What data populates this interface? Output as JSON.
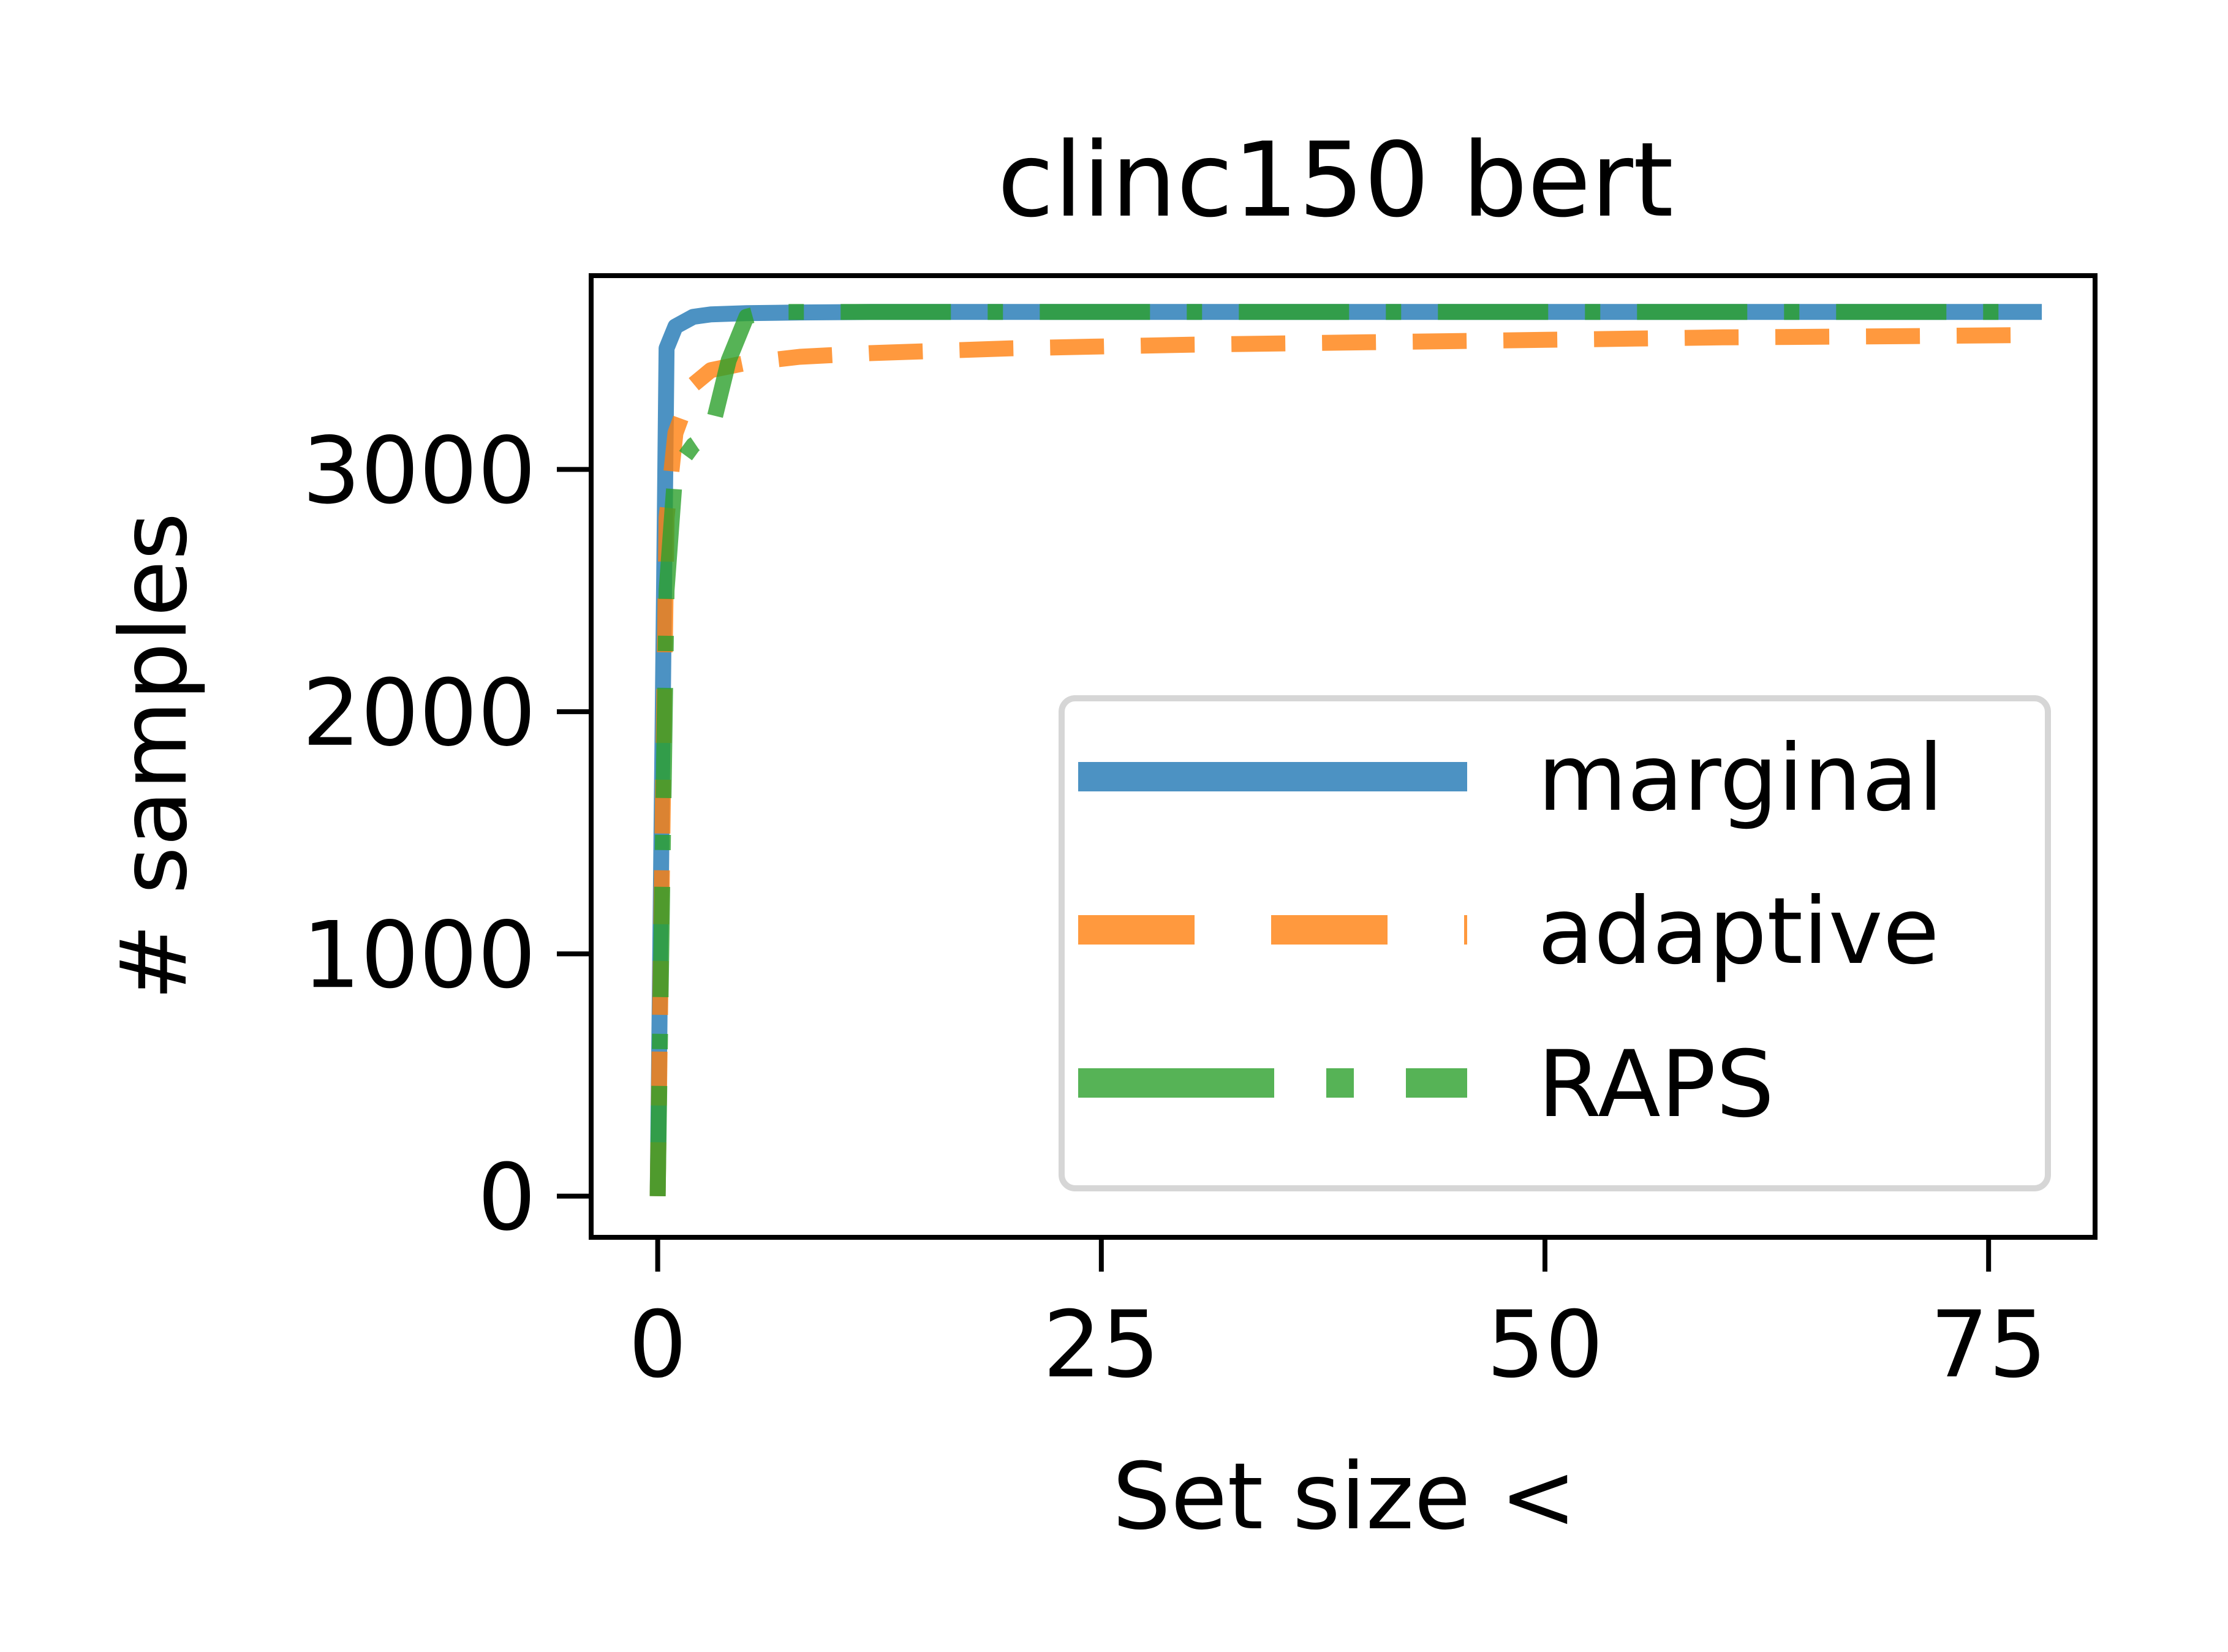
{
  "chart_data": {
    "type": "line",
    "title": "clinc150 bert",
    "xlabel": "Set size <",
    "ylabel": "# samples",
    "xlim": [
      -3.75,
      81
    ],
    "ylim": [
      -170,
      3800
    ],
    "xticks": [
      0,
      25,
      50,
      75
    ],
    "yticks": [
      0,
      1000,
      2000,
      3000
    ],
    "xtick_labels": [
      "0",
      "25",
      "50",
      "75"
    ],
    "ytick_labels": [
      "0",
      "1000",
      "2000",
      "3000"
    ],
    "grid": false,
    "legend_position": "lower-right",
    "series": [
      {
        "name": "marginal",
        "style": "solid",
        "color": "#1f77b4",
        "x": [
          0,
          0.5,
          1,
          2,
          3,
          5,
          8,
          12,
          20,
          30,
          40,
          50,
          60,
          70,
          78
        ],
        "y": [
          0,
          3500,
          3590,
          3630,
          3640,
          3645,
          3648,
          3650,
          3650,
          3650,
          3650,
          3650,
          3650,
          3650,
          3650
        ]
      },
      {
        "name": "adaptive",
        "style": "dashed",
        "color": "#ff7f0e",
        "x": [
          0,
          0.5,
          1,
          2,
          3,
          5,
          8,
          12,
          20,
          30,
          40,
          50,
          60,
          70,
          77.5
        ],
        "y": [
          0,
          2800,
          3150,
          3350,
          3410,
          3440,
          3465,
          3480,
          3500,
          3515,
          3525,
          3535,
          3545,
          3550,
          3555
        ]
      },
      {
        "name": "RAPS",
        "style": "dashdot",
        "color": "#2ca02c",
        "x": [
          0,
          0.5,
          1,
          2,
          3,
          4,
          5,
          6,
          10,
          20,
          30,
          40,
          50,
          60,
          70,
          76
        ],
        "y": [
          0,
          2500,
          3000,
          3100,
          3150,
          3450,
          3630,
          3650,
          3650,
          3650,
          3650,
          3650,
          3650,
          3650,
          3650,
          3650
        ]
      }
    ]
  }
}
